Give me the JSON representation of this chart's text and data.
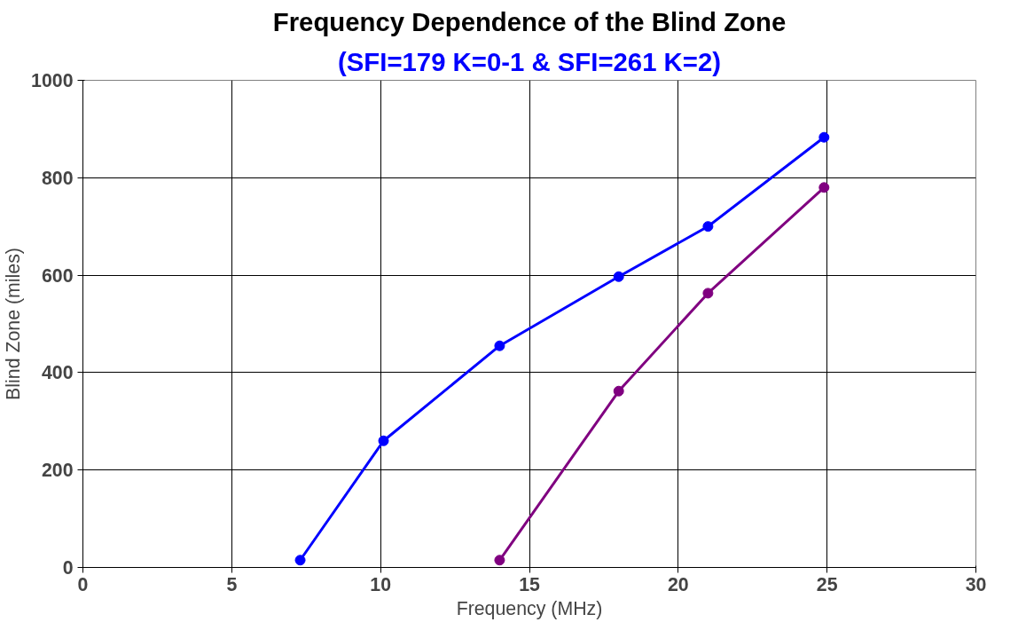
{
  "chart_data": {
    "type": "line",
    "title": "Frequency Dependence of the Blind Zone",
    "subtitle": "(SFI=179 K=0-1 & SFI=261 K=2)",
    "xlabel": "Frequency (MHz)",
    "ylabel": "Blind Zone (miles)",
    "series": [
      {
        "color": "#0000ff",
        "x": [
          7.3,
          10.1,
          14,
          18,
          21,
          24.9
        ],
        "values": [
          15,
          260,
          455,
          597,
          700,
          883
        ]
      },
      {
        "color": "#800080",
        "x": [
          14,
          18,
          21,
          24.9
        ],
        "values": [
          15,
          362,
          563,
          780
        ]
      }
    ],
    "xlim": [
      0,
      30
    ],
    "xticks": [
      0,
      5,
      10,
      15,
      20,
      25,
      30
    ],
    "ylim": [
      0,
      1000
    ],
    "yticks": [
      0,
      200,
      400,
      600,
      800,
      1000
    ],
    "grid": true,
    "marker": "circle",
    "line_style": "solid"
  }
}
